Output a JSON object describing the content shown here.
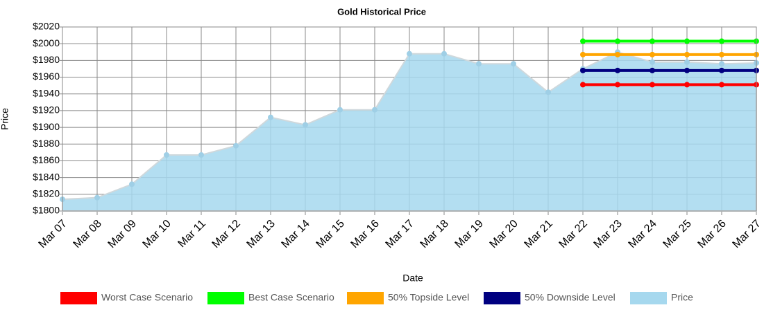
{
  "chart_data": {
    "type": "line",
    "title": "Gold  Historical Price",
    "x_label": "Date",
    "y_label": "Price",
    "categories": [
      "Mar 07",
      "Mar 08",
      "Mar 09",
      "Mar 10",
      "Mar 11",
      "Mar 12",
      "Mar 13",
      "Mar 14",
      "Mar 15",
      "Mar 16",
      "Mar 17",
      "Mar 18",
      "Mar 19",
      "Mar 20",
      "Mar 21",
      "Mar 22",
      "Mar 23",
      "Mar 24",
      "Mar 25",
      "Mar 26",
      "Mar 27"
    ],
    "series": [
      {
        "name": "Worst Case Scenario",
        "color": "#ff0000",
        "values": [
          null,
          null,
          null,
          null,
          null,
          null,
          null,
          null,
          null,
          null,
          null,
          null,
          null,
          null,
          null,
          1951,
          1951,
          1951,
          1951,
          1951,
          1951
        ]
      },
      {
        "name": "Best Case Scenario",
        "color": "#00ff00",
        "values": [
          null,
          null,
          null,
          null,
          null,
          null,
          null,
          null,
          null,
          null,
          null,
          null,
          null,
          null,
          null,
          2003,
          2003,
          2003,
          2003,
          2003,
          2003
        ]
      },
      {
        "name": "50% Topside Level",
        "color": "#ffa500",
        "values": [
          null,
          null,
          null,
          null,
          null,
          null,
          null,
          null,
          null,
          null,
          null,
          null,
          null,
          null,
          null,
          1987,
          1987,
          1987,
          1987,
          1987,
          1987
        ]
      },
      {
        "name": "50% Downside Level",
        "color": "#000080",
        "values": [
          null,
          null,
          null,
          null,
          null,
          null,
          null,
          null,
          null,
          null,
          null,
          null,
          null,
          null,
          null,
          1968,
          1968,
          1968,
          1968,
          1968,
          1968
        ]
      },
      {
        "name": "Price",
        "color": "#a6d8ee",
        "area": true,
        "values": [
          1814,
          1816,
          1832,
          1867,
          1867,
          1878,
          1912,
          1903,
          1921,
          1921,
          1988,
          1988,
          1976,
          1976,
          1942,
          1970,
          1990,
          1978,
          1978,
          1976,
          1977
        ]
      }
    ],
    "ylim": [
      1800,
      2020
    ],
    "yticks": [
      {
        "value": 1800,
        "label": "$1800"
      },
      {
        "value": 1820,
        "label": "$1820"
      },
      {
        "value": 1840,
        "label": "$1840"
      },
      {
        "value": 1860,
        "label": "$1860"
      },
      {
        "value": 1880,
        "label": "$1880"
      },
      {
        "value": 1900,
        "label": "$1900"
      },
      {
        "value": 1920,
        "label": "$1920"
      },
      {
        "value": 1940,
        "label": "$1940"
      },
      {
        "value": 1960,
        "label": "$1960"
      },
      {
        "value": 1980,
        "label": "$1980"
      },
      {
        "value": 2000,
        "label": "$2000"
      },
      {
        "value": 2020,
        "label": "$2020"
      }
    ],
    "grid": true,
    "legend": "bottom"
  }
}
